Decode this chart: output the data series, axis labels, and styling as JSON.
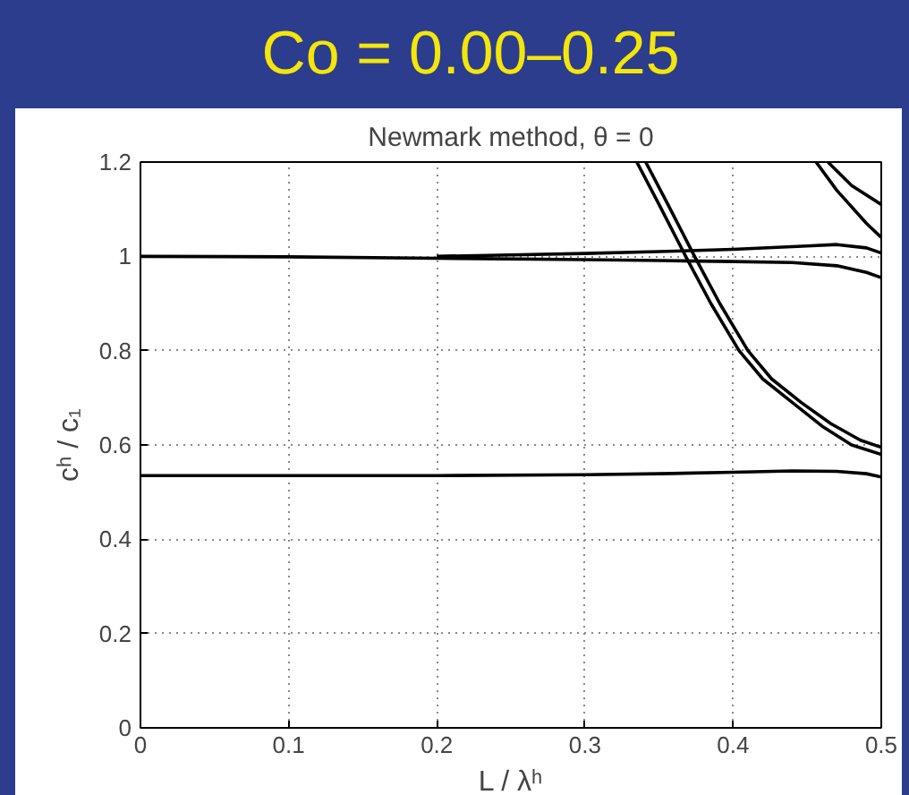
{
  "chart_data": {
    "type": "line",
    "title": "Co = 0.00–0.25",
    "subtitle": "Newmark method, θ = 0",
    "xlabel": "L / λʰ",
    "ylabel": "cʰ / c₁",
    "xlim": [
      0,
      0.5
    ],
    "ylim": [
      0,
      1.2
    ],
    "xticks": [
      0,
      0.1,
      0.2,
      0.3,
      0.4,
      0.5
    ],
    "yticks": [
      0,
      0.2,
      0.4,
      0.6,
      0.8,
      1,
      1.2
    ],
    "grid": true,
    "line_style": "solid",
    "series": [
      {
        "color": "#000000",
        "x": [
          0,
          0.1,
          0.2,
          0.3,
          0.35,
          0.4,
          0.44,
          0.47,
          0.49,
          0.5
        ],
        "values": [
          0.535,
          0.535,
          0.535,
          0.537,
          0.539,
          0.542,
          0.545,
          0.544,
          0.539,
          0.532
        ]
      },
      {
        "color": "#000000",
        "x": [
          0,
          0.1,
          0.2,
          0.3,
          0.35,
          0.4,
          0.44,
          0.47,
          0.49,
          0.5
        ],
        "values": [
          1.0,
          0.999,
          0.996,
          0.993,
          0.991,
          0.989,
          0.987,
          0.98,
          0.966,
          0.955
        ]
      },
      {
        "color": "#000000",
        "x": [
          0.2,
          0.25,
          0.3,
          0.35,
          0.4,
          0.45,
          0.47,
          0.49,
          0.5
        ],
        "values": [
          1.0,
          1.003,
          1.006,
          1.01,
          1.015,
          1.022,
          1.025,
          1.018,
          1.007
        ]
      },
      {
        "color": "#000000",
        "x": [
          0.335,
          0.35,
          0.368,
          0.385,
          0.404,
          0.42,
          0.44,
          0.46,
          0.48,
          0.5
        ],
        "values": [
          1.2,
          1.11,
          1.0,
          0.9,
          0.8,
          0.74,
          0.69,
          0.64,
          0.6,
          0.58
        ]
      },
      {
        "color": "#000000",
        "x": [
          0.341,
          0.356,
          0.374,
          0.391,
          0.41,
          0.426,
          0.446,
          0.466,
          0.486,
          0.5
        ],
        "values": [
          1.2,
          1.11,
          1.0,
          0.9,
          0.8,
          0.74,
          0.69,
          0.645,
          0.61,
          0.595
        ]
      },
      {
        "color": "#000000",
        "x": [
          0.456,
          0.47,
          0.49,
          0.5
        ],
        "values": [
          1.2,
          1.14,
          1.07,
          1.04
        ]
      },
      {
        "color": "#000000",
        "x": [
          0.464,
          0.48,
          0.5
        ],
        "values": [
          1.2,
          1.15,
          1.11
        ]
      }
    ]
  }
}
